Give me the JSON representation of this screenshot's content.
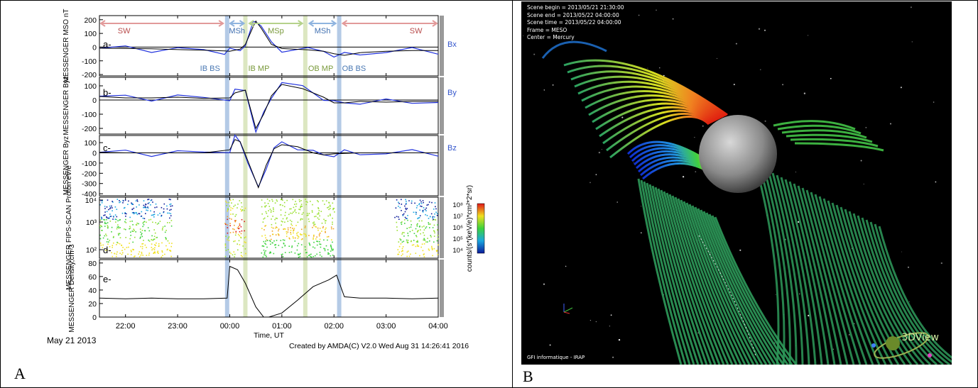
{
  "panels": {
    "A": "A",
    "B": "B"
  },
  "figA": {
    "date": "May 21 2013",
    "credit": "Created by AMDA(C) V2.0 Wed Aug 31 14:26:41 2016",
    "xaxis_title": "Time, UT",
    "time_ticks": [
      "22:00",
      "23:00",
      "00:00",
      "01:00",
      "02:00",
      "03:00",
      "04:00"
    ],
    "top_regions": [
      {
        "label": "SW",
        "color": "#e29a9a"
      },
      {
        "label": "MSh",
        "color": "#8fb4df"
      },
      {
        "label": "MSp",
        "color": "#b5d28b"
      },
      {
        "label": "MSh",
        "color": "#8fb4df"
      },
      {
        "label": "SW",
        "color": "#e29a9a"
      }
    ],
    "boundaries": [
      {
        "label": "IB BS",
        "color": "#a7c1e2"
      },
      {
        "label": "IB MP",
        "color": "#d6e3b6"
      },
      {
        "label": "OB MP",
        "color": "#d6e3b6"
      },
      {
        "label": "OB BS",
        "color": "#a7c1e2"
      }
    ],
    "boundary_label_colors": {
      "bs": "#4a78b3",
      "mp": "#7a9a3c"
    }
  },
  "chart_data": [
    {
      "type": "line",
      "panel": "a-",
      "ylabel": "MESSENGER MSO nT",
      "ylabel2": "Bx",
      "yticks": [
        "200",
        "100",
        "0",
        "-100",
        "-200"
      ],
      "ylim": [
        -210,
        230
      ],
      "series_label": "Bx",
      "series_color": "#2233dd",
      "x": [
        -2.5,
        -2,
        -1.5,
        -1,
        -0.5,
        -0.1,
        0,
        0.2,
        0.3,
        0.45,
        0.5,
        0.6,
        0.8,
        1,
        1.5,
        1.8,
        2,
        2.2,
        2.5,
        3,
        3.5,
        4
      ],
      "y": [
        -8,
        -10,
        -12,
        -18,
        -22,
        -28,
        -30,
        -15,
        20,
        150,
        190,
        140,
        20,
        -10,
        -20,
        -30,
        -48,
        -60,
        -40,
        -30,
        -25,
        -25
      ]
    },
    {
      "type": "line",
      "panel": "b-",
      "ylabel": "MESSENGER Byz",
      "ylabel2": "By",
      "yticks": [
        "100",
        "0",
        "-100",
        "-200"
      ],
      "ylim": [
        -240,
        160
      ],
      "series_label": "By",
      "series_color": "#2233dd",
      "x": [
        -2.5,
        -2,
        -1.5,
        -1,
        -0.5,
        0,
        0.1,
        0.3,
        0.5,
        0.65,
        0.8,
        1,
        1.4,
        1.8,
        2,
        2.2,
        2.5,
        3,
        3.5,
        4
      ],
      "y": [
        25,
        15,
        15,
        20,
        12,
        15,
        50,
        70,
        -200,
        -100,
        30,
        110,
        80,
        20,
        -20,
        -20,
        -10,
        -15,
        -10,
        -10
      ]
    },
    {
      "type": "line",
      "panel": "c-",
      "ylabel": "MESSENGER Byz",
      "ylabel2": "Bz",
      "yticks": [
        "100",
        "0",
        "-100",
        "-200",
        "-300",
        "-400"
      ],
      "ylim": [
        -420,
        170
      ],
      "series_label": "Bz",
      "series_color": "#2233dd",
      "x": [
        -2.5,
        -2,
        -1.5,
        -1,
        -0.5,
        0,
        0.1,
        0.2,
        0.35,
        0.55,
        0.7,
        0.85,
        1,
        1.3,
        1.6,
        1.8,
        2,
        2.2,
        2.5,
        3,
        3.5,
        4
      ],
      "y": [
        5,
        0,
        0,
        0,
        0,
        30,
        130,
        110,
        -80,
        -340,
        -120,
        40,
        80,
        60,
        0,
        -20,
        -10,
        -5,
        0,
        0,
        0,
        0
      ]
    },
    {
      "type": "heatmap",
      "panel": "d-",
      "ylabel": "MESSENGER FIPS-SCAN Proton eV/e",
      "yticks": [
        "10⁴",
        "10³",
        "10²"
      ],
      "colorbar_label": "counts/(s*(keV/e)*cm²*2*sr)",
      "colorbar_ticks": [
        "10⁸",
        "10⁷",
        "10⁶",
        "10⁵",
        "10⁴"
      ]
    },
    {
      "type": "line",
      "panel": "e-",
      "ylabel": "MESSENGER Density,cm-3",
      "yticks": [
        "80",
        "60",
        "40",
        "20",
        "0"
      ],
      "ylim": [
        0,
        85
      ],
      "series_color": "#000000",
      "x": [
        -2.5,
        -2,
        -1.5,
        -1,
        -0.5,
        -0.05,
        0,
        0.15,
        0.3,
        0.5,
        0.65,
        0.75,
        1,
        1.3,
        1.6,
        1.9,
        2.05,
        2.2,
        2.5,
        3,
        3.5,
        4
      ],
      "y": [
        28,
        27,
        28,
        27,
        27,
        28,
        75,
        70,
        50,
        15,
        0,
        0,
        6,
        25,
        45,
        55,
        62,
        30,
        28,
        28,
        27,
        28
      ]
    }
  ],
  "figB": {
    "scene_lines": [
      "Scene begin = 2013/05/21 21:30:00",
      "Scene end = 2013/05/22 04:00:00",
      "Scene time = 2013/05/22 04:00:00",
      "Frame = MESO",
      "Center = Mercury"
    ],
    "footer": "GFI informatique - IRAP",
    "logo": "3DView"
  }
}
